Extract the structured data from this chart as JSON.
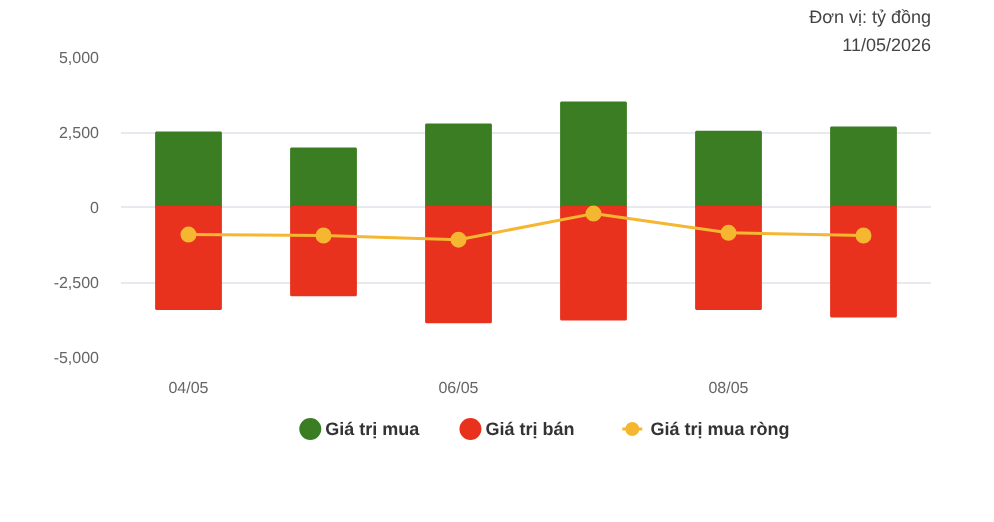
{
  "chart_data": {
    "type": "bar",
    "stacked": true,
    "categories": [
      "04/05",
      null,
      "06/05",
      null,
      "08/05",
      null
    ],
    "series": [
      {
        "name": "Giá trị mua",
        "color": "#3a7d22",
        "values": [
          2480,
          1950,
          2750,
          3480,
          2510,
          2650
        ]
      },
      {
        "name": "Giá trị bán",
        "color": "#e8321e",
        "values": [
          -3400,
          -2940,
          -3840,
          -3750,
          -3400,
          -3650
        ]
      },
      {
        "name": "Giá trị mua ròng",
        "type": "line",
        "color": "#f5b731",
        "values": [
          -920,
          -950,
          -1090,
          -220,
          -860,
          -950
        ]
      }
    ],
    "marker": "circle",
    "ylim": [
      -5000,
      5000
    ],
    "yticks": [
      {
        "value": -5000,
        "label": "-5,000"
      },
      {
        "value": -2500,
        "label": "-2,500"
      },
      0,
      {
        "value": 2500,
        "label": "2,500"
      },
      {
        "value": 5000,
        "label": "5,000"
      }
    ],
    "grid": "y",
    "legend": "bottom",
    "annotations": [
      "Đơn vị: tỷ đồng",
      "11/05/2026"
    ]
  }
}
